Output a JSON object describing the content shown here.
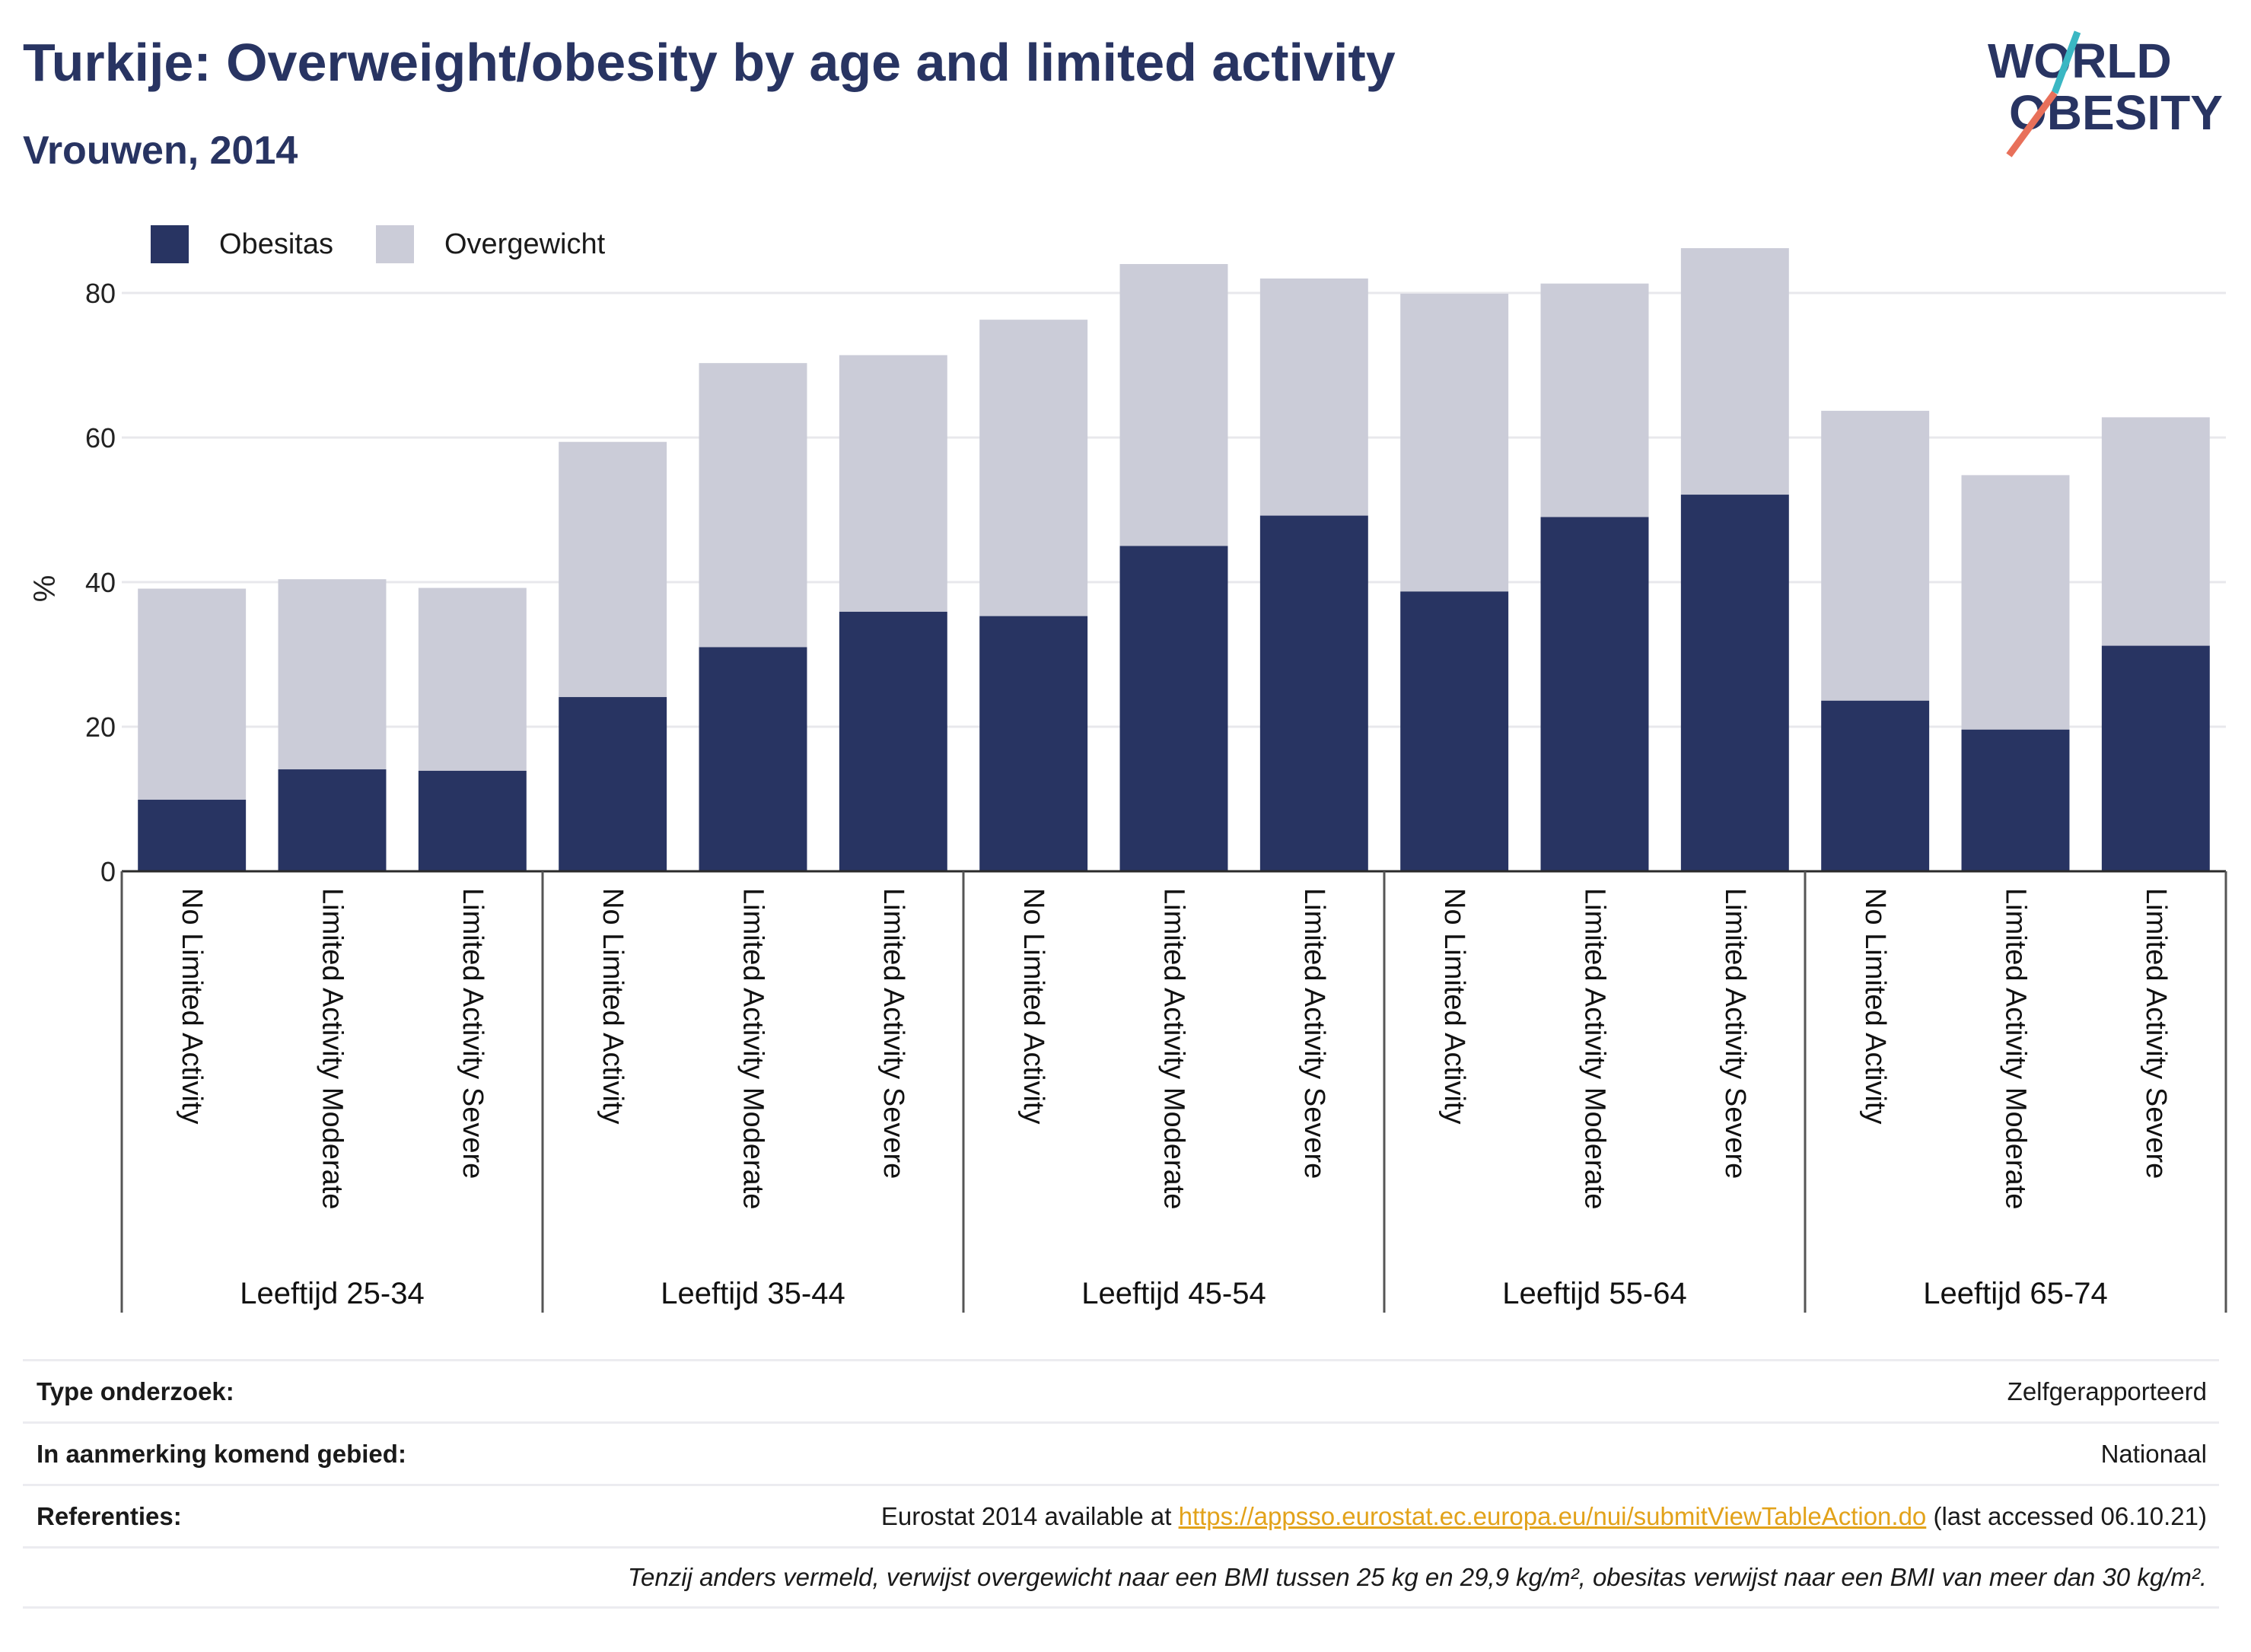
{
  "header": {
    "title": "Turkije: Overweight/obesity by age and limited activity",
    "subtitle": "Vrouwen, 2014"
  },
  "logo": {
    "line1": "WORLD",
    "line2": "OBESITY",
    "colors": {
      "text": "#283462",
      "slash_teal": "#3ab7c3",
      "slash_coral": "#e8705a"
    }
  },
  "colors": {
    "obesitas": "#283462",
    "overgewicht": "#cbccd8",
    "grid": "#e8e8ec",
    "link": "#e2a21a"
  },
  "legend": {
    "items": [
      {
        "label": "Obesitas",
        "color": "#283462"
      },
      {
        "label": "Overgewicht",
        "color": "#cbccd8"
      }
    ]
  },
  "chart_data": {
    "type": "bar",
    "stacked": true,
    "ylabel": "%",
    "ylim": [
      0,
      90
    ],
    "yticks": [
      0,
      20,
      40,
      60,
      80
    ],
    "grid": true,
    "legend_position": "top-left",
    "groups": [
      {
        "label": "Leeftijd 25-34",
        "categories": [
          "No Limited Activity",
          "Limited Activity Moderate",
          "Limited Activity Severe"
        ]
      },
      {
        "label": "Leeftijd 35-44",
        "categories": [
          "No Limited Activity",
          "Limited Activity Moderate",
          "Limited Activity Severe"
        ]
      },
      {
        "label": "Leeftijd 45-54",
        "categories": [
          "No Limited Activity",
          "Limited Activity Moderate",
          "Limited Activity Severe"
        ]
      },
      {
        "label": "Leeftijd 55-64",
        "categories": [
          "No Limited Activity",
          "Limited Activity Moderate",
          "Limited Activity Severe"
        ]
      },
      {
        "label": "Leeftijd 65-74",
        "categories": [
          "No Limited Activity",
          "Limited Activity Moderate",
          "Limited Activity Severe"
        ]
      }
    ],
    "series": [
      {
        "name": "Obesitas",
        "values": [
          9.9,
          14.1,
          13.9,
          24.1,
          31.0,
          35.9,
          35.3,
          45.0,
          49.2,
          38.7,
          49.0,
          52.1,
          23.6,
          19.6,
          31.2
        ]
      },
      {
        "name": "Overgewicht",
        "values": [
          29.2,
          26.3,
          25.3,
          35.3,
          39.3,
          35.5,
          41.0,
          39.0,
          32.8,
          41.2,
          32.3,
          34.1,
          40.1,
          35.2,
          31.6
        ]
      }
    ]
  },
  "info": {
    "rows": [
      {
        "label": "Type onderzoek:",
        "value": "Zelfgerapporteerd"
      },
      {
        "label": "In aanmerking komend gebied:",
        "value": "Nationaal"
      },
      {
        "label": "Referenties:",
        "prefix": "Eurostat 2014 available at ",
        "link": "https://appsso.eurostat.ec.europa.eu/nui/submitViewTableAction.do",
        "suffix": " (last accessed 06.10.21)"
      }
    ],
    "note": "Tenzij anders vermeld, verwijst overgewicht naar een BMI tussen 25 kg en 29,9 kg/m², obesitas verwijst naar een BMI van meer dan 30 kg/m²."
  }
}
